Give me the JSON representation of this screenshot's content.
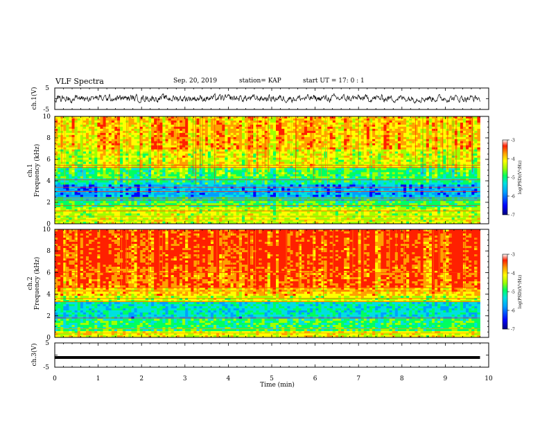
{
  "header": {
    "title": "VLF Spectra",
    "date": "Sep. 20, 2019",
    "station": "station= KAP",
    "start": "start  UT =   17: 0  : 1"
  },
  "colormap": [
    "#000080",
    "#0000ff",
    "#00a0ff",
    "#00e0e0",
    "#00ff60",
    "#a0ff00",
    "#ffff00",
    "#ffa000",
    "#ff2000",
    "#ffffff"
  ],
  "chart_data": [
    {
      "type": "line",
      "panel": "ch1-waveform",
      "ylabel": "ch.1(V)",
      "yticks": [
        "5",
        "-5"
      ],
      "ylim": [
        -5,
        5
      ],
      "xlim": [
        0,
        10
      ],
      "x_end": 9.8,
      "series": [
        {
          "approx_mean": 0.2,
          "approx_range": [
            -2.5,
            2.5
          ]
        }
      ]
    },
    {
      "type": "heatmap",
      "panel": "ch1-spectrogram",
      "ylabel": "ch.1\nFrequency (kHz)",
      "yticks": [
        "0",
        "2",
        "4",
        "6",
        "8",
        "10"
      ],
      "ylim": [
        0,
        10
      ],
      "xlim": [
        0,
        10
      ],
      "x_end": 9.8,
      "colorbar": {
        "label": "log(PSD)(V²/Hz)",
        "ticks": [
          "-3",
          "-4",
          "-5",
          "-6",
          "-7"
        ],
        "range": [
          -7,
          -3
        ]
      },
      "bands": [
        {
          "f": [
            0,
            0.5
          ],
          "level": -4.3
        },
        {
          "f": [
            0.5,
            1.5
          ],
          "level": -4.4
        },
        {
          "f": [
            1.5,
            2.1
          ],
          "level": -4.9
        },
        {
          "f": [
            2.1,
            2.5
          ],
          "level": -5.3
        },
        {
          "f": [
            2.5,
            3.6
          ],
          "level": -5.8
        },
        {
          "f": [
            3.6,
            4.2
          ],
          "level": -5.2
        },
        {
          "f": [
            4.2,
            5.2
          ],
          "level": -4.9
        },
        {
          "f": [
            5.2,
            7.0
          ],
          "level": -4.3
        },
        {
          "f": [
            7.0,
            10.0
          ],
          "level": -3.9
        }
      ],
      "lines_khz": [
        0.35,
        0.7,
        1.2,
        1.7,
        2.2,
        2.4,
        3.0,
        3.4,
        4.1,
        5.25,
        5.45
      ]
    },
    {
      "type": "heatmap",
      "panel": "ch2-spectrogram",
      "ylabel": "ch.2\nFrequency (kHz)",
      "yticks": [
        "0",
        "2",
        "4",
        "6",
        "8",
        "10"
      ],
      "ylim": [
        0,
        10
      ],
      "xlim": [
        0,
        10
      ],
      "x_end": 9.8,
      "colorbar": {
        "label": "log(PSD)(V²/Hz)",
        "ticks": [
          "-3",
          "-4",
          "-5",
          "-6",
          "-7"
        ],
        "range": [
          -7,
          -3
        ]
      },
      "bands": [
        {
          "f": [
            0,
            0.5
          ],
          "level": -4.2
        },
        {
          "f": [
            0.5,
            1.7
          ],
          "level": -5.0
        },
        {
          "f": [
            1.7,
            2.0
          ],
          "level": -5.6
        },
        {
          "f": [
            2.0,
            3.3
          ],
          "level": -5.4
        },
        {
          "f": [
            3.3,
            3.8
          ],
          "level": -4.4
        },
        {
          "f": [
            3.8,
            4.6
          ],
          "level": -3.9
        },
        {
          "f": [
            4.6,
            6.5
          ],
          "level": -3.5
        },
        {
          "f": [
            6.5,
            10.0
          ],
          "level": -3.3
        }
      ],
      "lines_khz": [
        0.4,
        0.8,
        1.8,
        3.3,
        3.6,
        4.3,
        4.6,
        6.0
      ]
    },
    {
      "type": "line",
      "panel": "ch3-waveform",
      "ylabel": "ch.3(V)",
      "yticks": [
        "5",
        "-5"
      ],
      "ylim": [
        -5,
        5
      ],
      "xlim": [
        0,
        10
      ],
      "x_end": 9.8,
      "series": [
        {
          "approx_mean": -1.0,
          "approx_range": [
            -1.3,
            -0.7
          ]
        }
      ]
    }
  ],
  "xaxis": {
    "label": "Time (min)",
    "ticks": [
      "0",
      "1",
      "2",
      "3",
      "4",
      "5",
      "6",
      "7",
      "8",
      "9",
      "10"
    ]
  }
}
